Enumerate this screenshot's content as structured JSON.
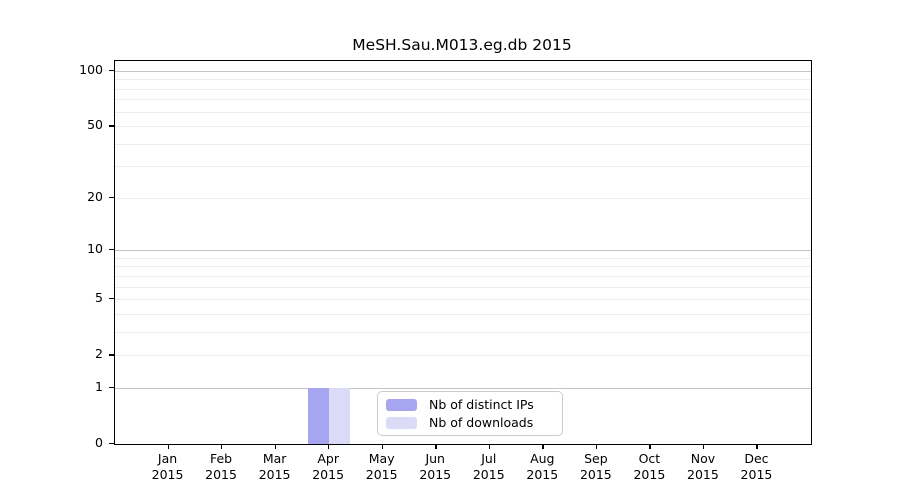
{
  "figure": {
    "background": "#ffffff"
  },
  "chart_data": {
    "type": "bar",
    "title": "MeSH.Sau.M013.eg.db 2015",
    "categories": [
      "Jan",
      "Feb",
      "Mar",
      "Apr",
      "May",
      "Jun",
      "Jul",
      "Aug",
      "Sep",
      "Oct",
      "Nov",
      "Dec"
    ],
    "x_year_label": "2015",
    "series": [
      {
        "name": "Nb of distinct IPs",
        "color": "#a5a5f0",
        "values": [
          0,
          0,
          0,
          1,
          0,
          0,
          0,
          0,
          0,
          0,
          0,
          0
        ]
      },
      {
        "name": "Nb of downloads",
        "color": "#dbdbf8",
        "values": [
          0,
          0,
          0,
          1,
          0,
          0,
          0,
          0,
          0,
          0,
          0,
          0
        ]
      }
    ],
    "y_axis": {
      "scale": "log1p",
      "ticks": [
        0,
        1,
        2,
        5,
        10,
        20,
        50,
        100
      ],
      "range": [
        0,
        113
      ],
      "top_log10": 2.058
    },
    "gridlines": {
      "minor_values": [
        2,
        3,
        4,
        5,
        6,
        7,
        8,
        9,
        20,
        30,
        40,
        50,
        60,
        70,
        80,
        90
      ],
      "major_values": [
        1,
        10,
        100
      ],
      "minor_color": "#ececec",
      "major_color": "#c3c3c3"
    },
    "legend": {
      "position": "bottom-center",
      "entries": [
        "Nb of distinct IPs",
        "Nb of downloads"
      ]
    }
  }
}
